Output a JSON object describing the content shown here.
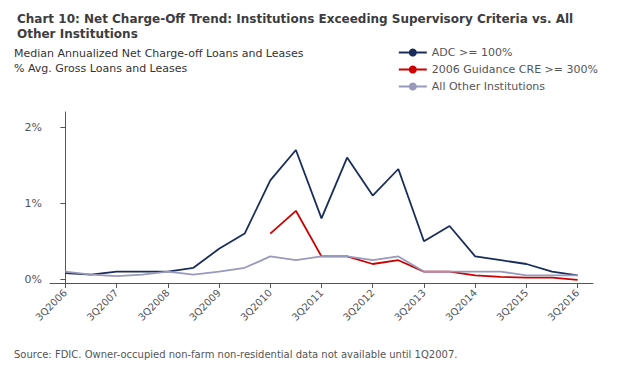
{
  "chart_data": {
    "type": "line",
    "title": "Chart 10: Net Charge-Off Trend: Institutions Exceeding Supervisory Criteria vs. All Other Institutions",
    "subtitle": "Median Annualized Net Charge-off Loans and Leases\n% Avg. Gross Loans and Leases",
    "annotations": [
      "Source: FDIC. Owner-occupied non-farm non-residential data not available until 1Q2007."
    ],
    "xlim": [
      -0.3,
      10.3
    ],
    "xticks": [
      {
        "value": 0,
        "label": "3Q2006"
      },
      {
        "value": 1,
        "label": "3Q2007"
      },
      {
        "value": 2,
        "label": "3Q2008"
      },
      {
        "value": 3,
        "label": "3Q2009"
      },
      {
        "value": 4,
        "label": "3Q2010"
      },
      {
        "value": 5,
        "label": "3Q2011"
      },
      {
        "value": 6,
        "label": "3Q2012"
      },
      {
        "value": 7,
        "label": "3Q2013"
      },
      {
        "value": 8,
        "label": "3Q2014"
      },
      {
        "value": 9,
        "label": "3Q2015"
      },
      {
        "value": 10,
        "label": "3Q2016"
      }
    ],
    "ylim": [
      -0.0005,
      0.022
    ],
    "yticks": [
      {
        "value": 0,
        "label": "0%"
      },
      {
        "value": 0.01,
        "label": "1%"
      },
      {
        "value": 0.02,
        "label": "2%"
      }
    ],
    "grid": false,
    "legend": "upper right",
    "series": [
      {
        "name": "ADC >= 100%",
        "color": "#1a2d5a",
        "x": [
          0,
          0.5,
          1.0,
          1.5,
          2.0,
          2.5,
          3.0,
          3.5,
          4.0,
          4.5,
          5.0,
          5.5,
          6.0,
          6.5,
          7.0,
          7.5,
          8.0,
          8.5,
          9.0,
          9.5,
          10.0
        ],
        "values": [
          0.0008,
          0.0006,
          0.001,
          0.001,
          0.001,
          0.0015,
          0.004,
          0.006,
          0.013,
          0.017,
          0.008,
          0.016,
          0.011,
          0.0145,
          0.005,
          0.007,
          0.003,
          0.0025,
          0.002,
          0.001,
          0.0005
        ]
      },
      {
        "name": "2006 Guidance CRE >= 300%",
        "color": "#cc0000",
        "x": [
          4.0,
          4.5,
          5.0,
          5.5,
          6.0,
          6.5,
          7.0,
          7.5,
          8.0,
          8.5,
          9.0,
          9.5,
          10.0
        ],
        "values": [
          0.006,
          0.009,
          0.003,
          0.003,
          0.002,
          0.0025,
          0.001,
          0.001,
          0.0005,
          0.0003,
          0.0002,
          0.0002,
          -0.0001
        ]
      },
      {
        "name": "All Other Institutions",
        "color": "#9999bb",
        "x": [
          0,
          0.5,
          1.0,
          1.5,
          2.0,
          2.5,
          3.0,
          3.5,
          4.0,
          4.5,
          5.0,
          5.5,
          6.0,
          6.5,
          7.0,
          7.5,
          8.0,
          8.5,
          9.0,
          9.5,
          10.0
        ],
        "values": [
          0.001,
          0.0006,
          0.0004,
          0.0006,
          0.001,
          0.0006,
          0.001,
          0.0015,
          0.003,
          0.0025,
          0.003,
          0.003,
          0.0025,
          0.003,
          0.001,
          0.001,
          0.001,
          0.001,
          0.0005,
          0.0005,
          0.0005
        ]
      }
    ]
  }
}
